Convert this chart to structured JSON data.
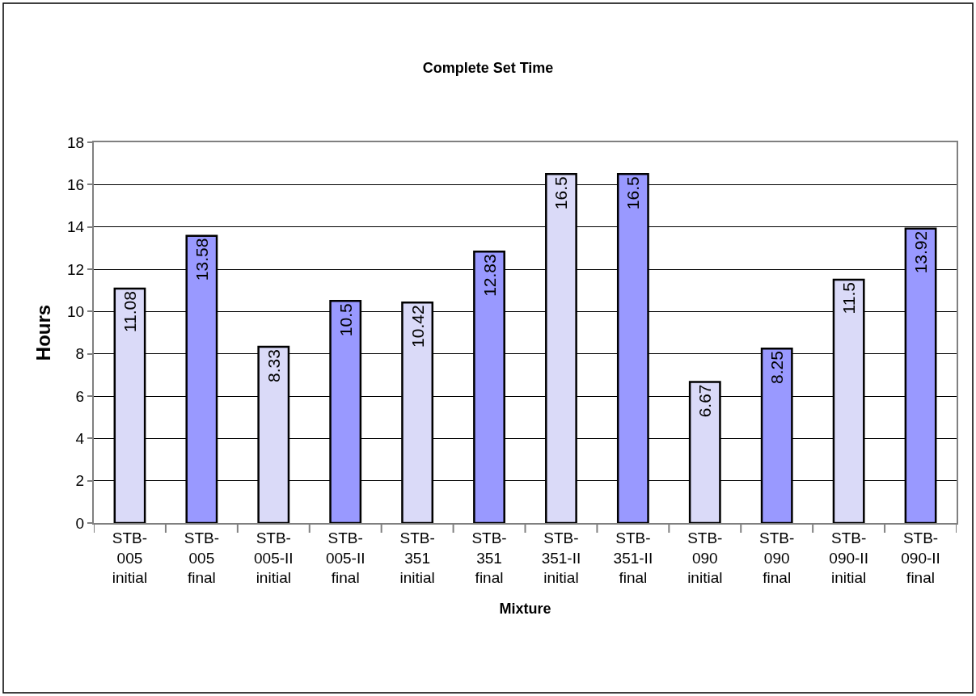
{
  "chart_data": {
    "type": "bar",
    "title": "Complete Set Time",
    "xlabel": "Mixture",
    "ylabel": "Hours",
    "categories": [
      "STB-005 initial",
      "STB-005 final",
      "STB-005-II initial",
      "STB-005-II final",
      "STB-351 initial",
      "STB-351 final",
      "STB-351-II initial",
      "STB-351-II final",
      "STB-090 initial",
      "STB-090 final",
      "STB-090-II initial",
      "STB-090-II final"
    ],
    "values": [
      11.08,
      13.58,
      8.33,
      10.5,
      10.42,
      12.83,
      16.5,
      16.5,
      6.67,
      8.25,
      11.5,
      13.92
    ],
    "colors": [
      "#dadaf8",
      "#9999ff",
      "#dadaf8",
      "#9999ff",
      "#dadaf8",
      "#9999ff",
      "#dadaf8",
      "#9999ff",
      "#dadaf8",
      "#9999ff",
      "#dadaf8",
      "#9999ff"
    ],
    "ylim": [
      0,
      18
    ],
    "yticks": [
      0,
      2,
      4,
      6,
      8,
      10,
      12,
      14,
      16,
      18
    ],
    "grid": "y",
    "data_labels": true
  }
}
